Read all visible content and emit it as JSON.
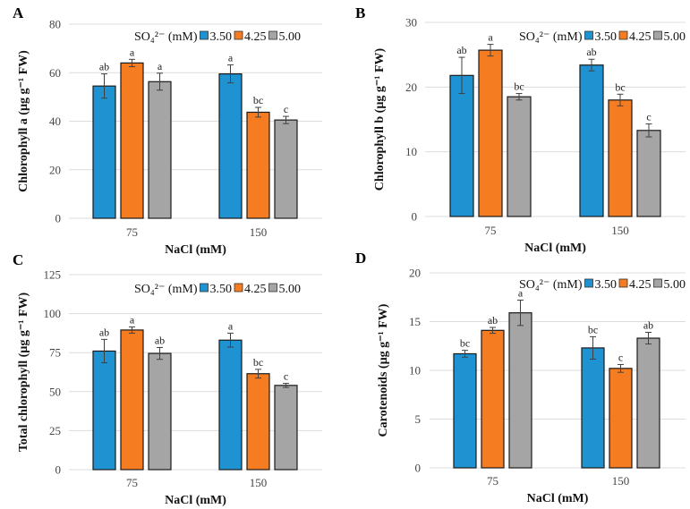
{
  "colors": {
    "3.50": "#1f93d2",
    "4.25": "#f57c20",
    "5.00": "#a5a5a5"
  },
  "chart_data": [
    {
      "panel": "A",
      "type": "bar",
      "categories": [
        "75",
        "150"
      ],
      "xlabel": "NaCl (mM)",
      "ylabel": "Chlorophyll a (µg g⁻¹ FW)",
      "ylim": [
        0,
        80
      ],
      "yticks": [
        0,
        20,
        40,
        60,
        80
      ],
      "legend": {
        "title": "SO₄²⁻ (mM)",
        "position": "top-right"
      },
      "grid": true,
      "series": [
        {
          "name": "3.50",
          "values": [
            54.5,
            59.5
          ],
          "errors": [
            5.0,
            3.7
          ],
          "letters": [
            "ab",
            "a"
          ]
        },
        {
          "name": "4.25",
          "values": [
            64.0,
            43.7
          ],
          "errors": [
            1.5,
            2.0
          ],
          "letters": [
            "a",
            "bc"
          ]
        },
        {
          "name": "5.00",
          "values": [
            56.3,
            40.5
          ],
          "errors": [
            3.5,
            1.5
          ],
          "letters": [
            "a",
            "c"
          ]
        }
      ]
    },
    {
      "panel": "B",
      "type": "bar",
      "categories": [
        "75",
        "150"
      ],
      "xlabel": "NaCl (mM)",
      "ylabel": "Chlorophyll b (µg g⁻¹ FW)",
      "ylim": [
        0,
        30
      ],
      "yticks": [
        0,
        10,
        20,
        30
      ],
      "legend": {
        "title": "SO₄²⁻ (mM)",
        "position": "top-right"
      },
      "grid": true,
      "series": [
        {
          "name": "3.50",
          "values": [
            21.8,
            23.4
          ],
          "errors": [
            2.8,
            0.9
          ],
          "letters": [
            "ab",
            "ab"
          ]
        },
        {
          "name": "4.25",
          "values": [
            25.7,
            18.0
          ],
          "errors": [
            0.9,
            0.9
          ],
          "letters": [
            "a",
            "bc"
          ]
        },
        {
          "name": "5.00",
          "values": [
            18.5,
            13.3
          ],
          "errors": [
            0.5,
            1.0
          ],
          "letters": [
            "bc",
            "c"
          ]
        }
      ]
    },
    {
      "panel": "C",
      "type": "bar",
      "categories": [
        "75",
        "150"
      ],
      "xlabel": "NaCl (mM)",
      "ylabel": "Total chlorophyll  (µg g⁻¹ FW)",
      "ylim": [
        0,
        125
      ],
      "yticks": [
        0,
        25,
        50,
        75,
        100,
        125
      ],
      "legend": {
        "title": "SO₄²⁻ (mM)",
        "position": "top-right"
      },
      "grid": true,
      "series": [
        {
          "name": "3.50",
          "values": [
            76.0,
            83.0
          ],
          "errors": [
            7.5,
            4.5
          ],
          "letters": [
            "ab",
            "a"
          ]
        },
        {
          "name": "4.25",
          "values": [
            89.5,
            61.5
          ],
          "errors": [
            2.0,
            2.8
          ],
          "letters": [
            "a",
            "bc"
          ]
        },
        {
          "name": "5.00",
          "values": [
            74.5,
            54.0
          ],
          "errors": [
            3.8,
            1.3
          ],
          "letters": [
            "ab",
            "c"
          ]
        }
      ]
    },
    {
      "panel": "D",
      "type": "bar",
      "categories": [
        "75",
        "150"
      ],
      "xlabel": "NaCl (mM)",
      "ylabel": "Carotenoids (µg g⁻¹ FW)",
      "ylim": [
        0,
        20
      ],
      "yticks": [
        0,
        5,
        10,
        15,
        20
      ],
      "legend": {
        "title": "SO₄²⁻ (mM)",
        "position": "top-right"
      },
      "grid": true,
      "series": [
        {
          "name": "3.50",
          "values": [
            11.7,
            12.3
          ],
          "errors": [
            0.35,
            1.15
          ],
          "letters": [
            "bc",
            "bc"
          ]
        },
        {
          "name": "4.25",
          "values": [
            14.1,
            10.2
          ],
          "errors": [
            0.3,
            0.4
          ],
          "letters": [
            "ab",
            "c"
          ]
        },
        {
          "name": "5.00",
          "values": [
            15.9,
            13.3
          ],
          "errors": [
            1.3,
            0.6
          ],
          "letters": [
            "a",
            "ab"
          ]
        }
      ]
    }
  ]
}
